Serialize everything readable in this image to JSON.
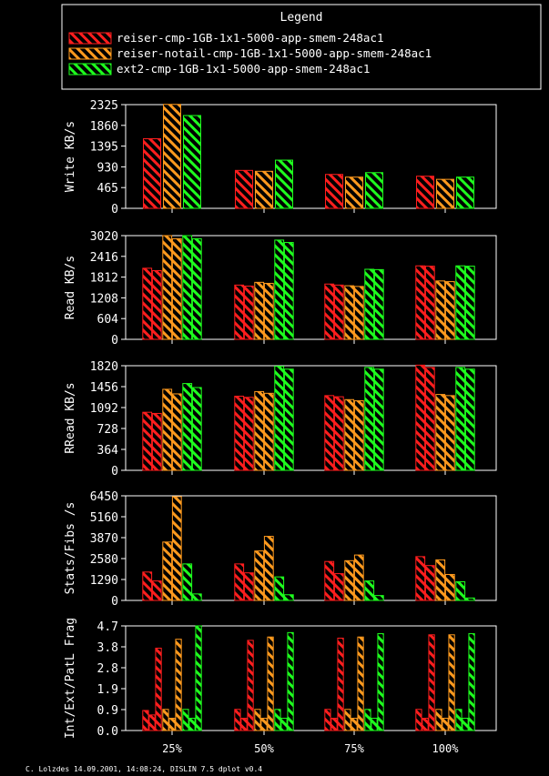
{
  "legend": {
    "title": "Legend",
    "entries": [
      "reiser-cmp-1GB-1x1-5000-app-smem-248ac1",
      "reiser-notail-cmp-1GB-1x1-5000-app-smem-248ac1",
      "ext2-cmp-1GB-1x1-5000-app-smem-248ac1"
    ]
  },
  "colors": {
    "series": [
      "#ff1e1e",
      "#ff9a1e",
      "#1eff1e"
    ],
    "axis": "#ffffff",
    "background": "#000000"
  },
  "categories": [
    "25%",
    "50%",
    "75%",
    "100%"
  ],
  "footer": "C. Lolzdes 14.09.2001, 14:08:24, DISLIN 7.5 dplot v0.4",
  "chart_data": [
    {
      "type": "bar",
      "ylabel": "Write KB/s",
      "categories": [
        "25%",
        "50%",
        "75%",
        "100%"
      ],
      "ylim": [
        0,
        2325
      ],
      "yticks": [
        "0",
        "465",
        "930",
        "1395",
        "1860",
        "2325"
      ],
      "grid": false,
      "series": [
        {
          "name": "reiser-cmp-1GB-1x1-5000-app-smem-248ac1",
          "values": [
            [
              1560
            ],
            [
              850
            ],
            [
              760
            ],
            [
              720
            ]
          ]
        },
        {
          "name": "reiser-notail-cmp-1GB-1x1-5000-app-smem-248ac1",
          "values": [
            [
              2330
            ],
            [
              830
            ],
            [
              700
            ],
            [
              650
            ]
          ]
        },
        {
          "name": "ext2-cmp-1GB-1x1-5000-app-smem-248ac1",
          "values": [
            [
              2080
            ],
            [
              1080
            ],
            [
              800
            ],
            [
              700
            ]
          ]
        }
      ]
    },
    {
      "type": "bar",
      "ylabel": "Read KB/s",
      "categories": [
        "25%",
        "50%",
        "75%",
        "100%"
      ],
      "ylim": [
        0,
        3020
      ],
      "yticks": [
        "0",
        "604",
        "1208",
        "1812",
        "2416",
        "3020"
      ],
      "grid": false,
      "series": [
        {
          "name": "reiser-cmp-1GB-1x1-5000-app-smem-248ac1",
          "values": [
            [
              2070,
              2000
            ],
            [
              1580,
              1550
            ],
            [
              1610,
              1580
            ],
            [
              2140,
              2130
            ]
          ]
        },
        {
          "name": "reiser-notail-cmp-1GB-1x1-5000-app-smem-248ac1",
          "values": [
            [
              3020,
              2930
            ],
            [
              1660,
              1630
            ],
            [
              1560,
              1540
            ],
            [
              1700,
              1680
            ]
          ]
        },
        {
          "name": "ext2-cmp-1GB-1x1-5000-app-smem-248ac1",
          "values": [
            [
              3020,
              2930
            ],
            [
              2890,
              2820
            ],
            [
              2040,
              2030
            ],
            [
              2140,
              2130
            ]
          ]
        }
      ]
    },
    {
      "type": "bar",
      "ylabel": "RRead KB/s",
      "categories": [
        "25%",
        "50%",
        "75%",
        "100%"
      ],
      "ylim": [
        0,
        1820
      ],
      "yticks": [
        "0",
        "364",
        "728",
        "1092",
        "1456",
        "1820"
      ],
      "grid": false,
      "series": [
        {
          "name": "reiser-cmp-1GB-1x1-5000-app-smem-248ac1",
          "values": [
            [
              1010,
              990
            ],
            [
              1290,
              1270
            ],
            [
              1300,
              1280
            ],
            [
              1830,
              1790
            ]
          ]
        },
        {
          "name": "reiser-notail-cmp-1GB-1x1-5000-app-smem-248ac1",
          "values": [
            [
              1410,
              1330
            ],
            [
              1370,
              1340
            ],
            [
              1230,
              1210
            ],
            [
              1320,
              1300
            ]
          ]
        },
        {
          "name": "ext2-cmp-1GB-1x1-5000-app-smem-248ac1",
          "values": [
            [
              1510,
              1440
            ],
            [
              1810,
              1760
            ],
            [
              1790,
              1760
            ],
            [
              1790,
              1760
            ]
          ]
        }
      ]
    },
    {
      "type": "bar",
      "ylabel": "Stats/Fibs /s",
      "categories": [
        "25%",
        "50%",
        "75%",
        "100%"
      ],
      "ylim": [
        0,
        6450
      ],
      "yticks": [
        "0",
        "1290",
        "2580",
        "3870",
        "5160",
        "6450"
      ],
      "grid": false,
      "series": [
        {
          "name": "reiser-cmp-1GB-1x1-5000-app-smem-248ac1",
          "values": [
            [
              1750,
              1200
            ],
            [
              2250,
              1700
            ],
            [
              2400,
              1650
            ],
            [
              2700,
              2150
            ]
          ]
        },
        {
          "name": "reiser-notail-cmp-1GB-1x1-5000-app-smem-248ac1",
          "values": [
            [
              3600,
              6400
            ],
            [
              3050,
              3950
            ],
            [
              2450,
              2800
            ],
            [
              2500,
              1600
            ]
          ]
        },
        {
          "name": "ext2-cmp-1GB-1x1-5000-app-smem-248ac1",
          "values": [
            [
              2250,
              400
            ],
            [
              1450,
              350
            ],
            [
              1200,
              300
            ],
            [
              1150,
              150
            ]
          ]
        }
      ]
    },
    {
      "type": "bar",
      "ylabel": "Int/Ext/PatL Frag",
      "categories": [
        "25%",
        "50%",
        "75%",
        "100%"
      ],
      "ylim": [
        0,
        4.7
      ],
      "yticks": [
        "0.0",
        "0.9",
        "1.9",
        "2.8",
        "3.8",
        "4.7"
      ],
      "grid": false,
      "series": [
        {
          "name": "reiser-cmp-1GB-1x1-5000-app-smem-248ac1",
          "values": [
            [
              0.9,
              0.7,
              3.7
            ],
            [
              0.95,
              0.55,
              4.05
            ],
            [
              0.95,
              0.55,
              4.15
            ],
            [
              0.95,
              0.55,
              4.3
            ]
          ]
        },
        {
          "name": "reiser-notail-cmp-1GB-1x1-5000-app-smem-248ac1",
          "values": [
            [
              0.95,
              0.55,
              4.1
            ],
            [
              0.95,
              0.55,
              4.2
            ],
            [
              0.95,
              0.55,
              4.2
            ],
            [
              0.95,
              0.55,
              4.3
            ]
          ]
        },
        {
          "name": "ext2-cmp-1GB-1x1-5000-app-smem-248ac1",
          "values": [
            [
              0.95,
              0.55,
              4.7
            ],
            [
              0.95,
              0.55,
              4.4
            ],
            [
              0.95,
              0.55,
              4.35
            ],
            [
              0.95,
              0.55,
              4.35
            ]
          ]
        }
      ]
    }
  ]
}
